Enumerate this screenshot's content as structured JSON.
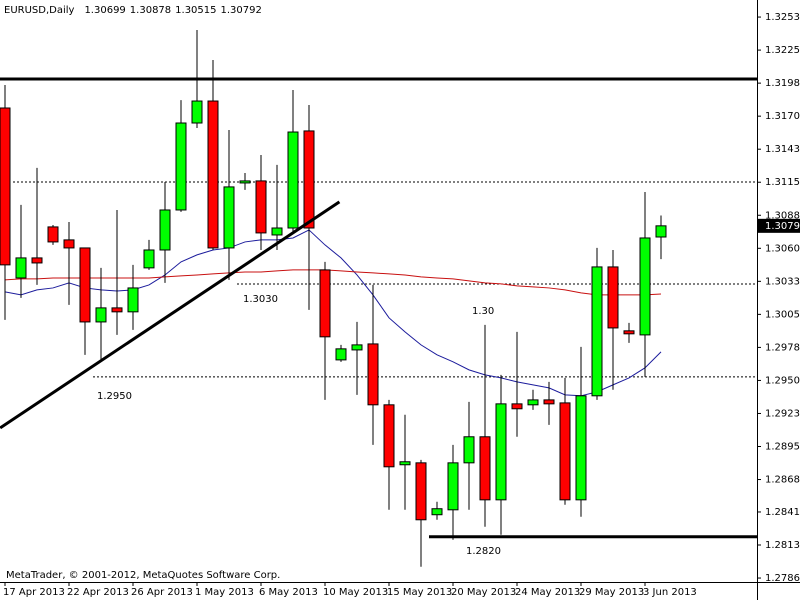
{
  "chart_data": {
    "type": "candlestick",
    "symbol": "EURUSD,Daily",
    "header_values": [
      1.30699,
      1.30878,
      1.30515,
      1.30792
    ],
    "watermark": "MetaTrader, © 2001-2012, MetaQuotes Software Corp.",
    "categories": [
      "17 Apr 2013",
      null,
      null,
      null,
      "22 Apr 2013",
      null,
      null,
      null,
      "26 Apr 2013",
      null,
      null,
      null,
      "1 May 2013",
      null,
      null,
      null,
      "6 May 2013",
      null,
      null,
      null,
      "10 May 2013",
      null,
      null,
      null,
      "15 May 2013",
      null,
      null,
      null,
      "20 May 2013",
      null,
      null,
      null,
      "24 May 2013",
      null,
      null,
      null,
      "29 May 2013",
      null,
      null,
      null,
      "3 Jun 2013",
      null
    ],
    "open": [
      1.31773,
      1.30358,
      1.30525,
      1.30783,
      1.30675,
      1.30608,
      1.29992,
      1.30109,
      1.30076,
      1.30442,
      1.30591,
      1.30924,
      1.31648,
      1.31831,
      1.30608,
      1.31149,
      1.31166,
      1.30716,
      1.30774,
      1.31582,
      1.30425,
      1.29676,
      1.29759,
      1.29809,
      1.29302,
      1.28803,
      1.28819,
      1.28387,
      1.28428,
      1.28819,
      1.29036,
      1.28511,
      1.2931,
      1.29302,
      1.29343,
      1.29318,
      1.28511,
      1.29377,
      1.3045,
      1.29918,
      1.29884,
      1.30699
    ],
    "high": [
      1.31964,
      1.30966,
      1.31274,
      1.30799,
      1.30824,
      1.30608,
      1.30442,
      1.30924,
      1.30467,
      1.30675,
      1.31157,
      1.31839,
      1.32422,
      1.32172,
      1.3159,
      1.31232,
      1.31382,
      1.31299,
      1.31923,
      1.31798,
      1.30492,
      1.29801,
      1.29992,
      1.303,
      1.29343,
      1.29219,
      1.28844,
      1.28495,
      1.28969,
      1.29327,
      1.29967,
      1.29551,
      1.29909,
      1.29427,
      1.29493,
      1.29526,
      1.29784,
      1.30608,
      1.30591,
      1.29984,
      1.31074,
      1.30878
    ],
    "low": [
      1.30009,
      1.30192,
      1.303,
      1.30633,
      1.30134,
      1.29718,
      1.29676,
      1.29884,
      1.29926,
      1.30425,
      1.30317,
      1.30908,
      1.31606,
      1.30591,
      1.30342,
      1.31091,
      1.30591,
      1.30591,
      1.30741,
      1.30092,
      1.29343,
      1.2966,
      1.29385,
      1.28969,
      1.28428,
      1.28428,
      1.27954,
      1.28345,
      1.28179,
      1.28428,
      1.28287,
      1.2822,
      1.29036,
      1.2926,
      1.29135,
      1.2847,
      1.2837,
      1.29343,
      1.29427,
      1.29818,
      1.29535,
      1.30515
    ],
    "close": [
      1.30467,
      1.30525,
      1.30483,
      1.30658,
      1.30608,
      1.29992,
      1.30109,
      1.30076,
      1.30275,
      1.30591,
      1.30924,
      1.31648,
      1.31831,
      1.30608,
      1.31116,
      1.31166,
      1.30733,
      1.30774,
      1.31573,
      1.30774,
      1.29868,
      1.29768,
      1.29801,
      1.29302,
      1.28786,
      1.28828,
      1.28345,
      1.28437,
      1.28819,
      1.29036,
      1.28511,
      1.2931,
      1.29269,
      1.29343,
      1.2931,
      1.28511,
      1.29377,
      1.3045,
      1.29942,
      1.29893,
      1.30691,
      1.30792
    ],
    "up_color": "#00ff00",
    "down_color": "#ff0000",
    "overlays": [
      {
        "color": "#1c1c9c",
        "values": [
          1.30242,
          1.30217,
          1.30259,
          1.30275,
          1.30317,
          1.30275,
          1.30259,
          1.3025,
          1.30259,
          1.303,
          1.30383,
          1.30492,
          1.3055,
          1.30591,
          1.30608,
          1.30658,
          1.30675,
          1.30675,
          1.30691,
          1.30758,
          1.30633,
          1.30525,
          1.30383,
          1.30217,
          1.30026,
          1.29909,
          1.29801,
          1.29718,
          1.2966,
          1.29593,
          1.29551,
          1.29526,
          1.29493,
          1.29468,
          1.29443,
          1.29385,
          1.29377,
          1.2941,
          1.29468,
          1.29526,
          1.2961,
          1.29743
        ]
      },
      {
        "color": "#c81010",
        "values": [
          1.30342,
          1.3035,
          1.3035,
          1.30358,
          1.30358,
          1.30358,
          1.30358,
          1.30358,
          1.30358,
          1.30358,
          1.30367,
          1.30375,
          1.30383,
          1.30392,
          1.304,
          1.30408,
          1.30408,
          1.30417,
          1.30425,
          1.30425,
          1.30425,
          1.30417,
          1.30408,
          1.304,
          1.30392,
          1.30383,
          1.30367,
          1.30358,
          1.3035,
          1.30334,
          1.30317,
          1.30309,
          1.30292,
          1.30284,
          1.30275,
          1.30259,
          1.30234,
          1.30217,
          1.30217,
          1.30217,
          1.30217,
          1.30225
        ]
      }
    ],
    "levels": [
      {
        "value": 1.32014,
        "style": "thick",
        "from": 0
      },
      {
        "value": 1.31157,
        "style": "dotted",
        "from": 1
      },
      {
        "value": 1.30308,
        "style": "dotted",
        "from": 15
      },
      {
        "value": 1.29535,
        "style": "dotted",
        "from": 6
      },
      {
        "value": 1.28204,
        "style": "thick",
        "from": 27
      }
    ],
    "trendline": {
      "x": [
        -0.3,
        20.9
      ],
      "values": [
        1.2911,
        1.30991
      ]
    },
    "annotations": [
      "1.3030",
      "1.2950",
      "1.30",
      "1.2820"
    ],
    "last_price": 1.30792,
    "ylim": [
      1.27827,
      1.32672
    ],
    "yticks": [
      {
        "value": 1.3253,
        "label": "1.32530"
      },
      {
        "value": 1.32255,
        "label": "1.32255"
      },
      {
        "value": 1.3198,
        "label": "1.31980"
      },
      {
        "value": 1.31705,
        "label": "1.31705"
      },
      {
        "value": 1.3143,
        "label": "1.31430"
      },
      {
        "value": 1.31155,
        "label": "1.31155"
      },
      {
        "value": 1.3088,
        "label": "1.30880"
      },
      {
        "value": 1.30605,
        "label": "1.30605"
      },
      {
        "value": 1.3033,
        "label": "1.30330"
      },
      {
        "value": 1.30055,
        "label": "1.30055"
      },
      {
        "value": 1.2978,
        "label": "1.29780"
      },
      {
        "value": 1.29505,
        "label": "1.29505"
      },
      {
        "value": 1.2923,
        "label": "1.29230"
      },
      {
        "value": 1.28955,
        "label": "1.28955"
      },
      {
        "value": 1.2868,
        "label": "1.28680"
      },
      {
        "value": 1.2841,
        "label": "1.28410"
      },
      {
        "value": 1.28135,
        "label": "1.28135"
      },
      {
        "value": 1.2786,
        "label": "1.27860"
      }
    ]
  }
}
